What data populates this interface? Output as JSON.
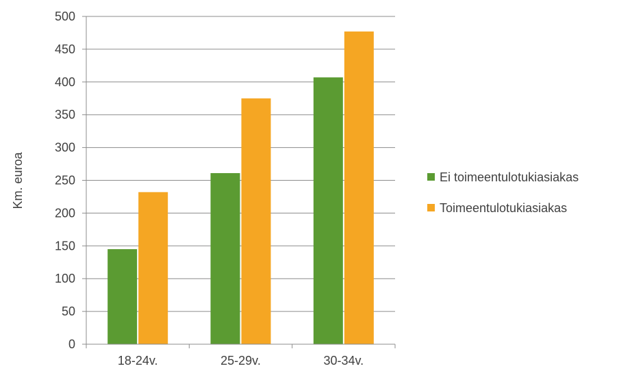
{
  "chart_data": {
    "type": "bar",
    "categories": [
      "18-24v.",
      "25-29v.",
      "30-34v."
    ],
    "series": [
      {
        "name": "Ei toimeentulotukiasiakas",
        "values": [
          145,
          261,
          407
        ],
        "color": "#5b9b32"
      },
      {
        "name": "Toimeentulotukiasiakas",
        "values": [
          232,
          375,
          477
        ],
        "color": "#f5a623"
      }
    ],
    "ylabel": "Km. euroa",
    "xlabel": "",
    "ylim": [
      0,
      500
    ],
    "yticks": [
      0,
      50,
      100,
      150,
      200,
      250,
      300,
      350,
      400,
      450,
      500
    ],
    "grid": true,
    "legend_position": "right"
  }
}
